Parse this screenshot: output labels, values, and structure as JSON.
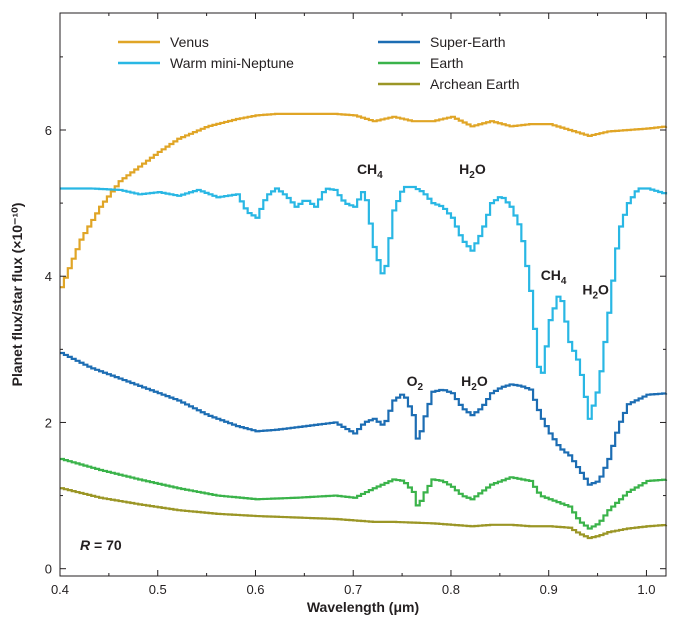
{
  "chart_data": {
    "type": "line",
    "step": true,
    "xlabel": "Wavelength (μm)",
    "ylabel": "Planet flux/star flux (×10⁻¹⁰)",
    "xlim": [
      0.4,
      1.02
    ],
    "ylim": [
      -0.1,
      7.6
    ],
    "xticks": [
      0.4,
      0.5,
      0.6,
      0.7,
      0.8,
      0.9,
      1.0
    ],
    "xtick_labels": [
      "0.4",
      "0.5",
      "0.6",
      "0.7",
      "0.8",
      "0.9",
      "1.0"
    ],
    "yticks": [
      0,
      2,
      4,
      6
    ],
    "ytick_labels": [
      "0",
      "2",
      "4",
      "6"
    ],
    "grid": false,
    "legend_position": "top",
    "resolution_label": {
      "symbol": "R",
      "text": " = 70"
    },
    "annotations": [
      {
        "base": "CH",
        "sub": "4",
        "x": 0.717,
        "y": 5.4
      },
      {
        "base": "H",
        "sub": "2",
        "tail": "O",
        "x": 0.822,
        "y": 5.4
      },
      {
        "base": "CH",
        "sub": "4",
        "x": 0.905,
        "y": 3.95
      },
      {
        "base": "H",
        "sub": "2",
        "tail": "O",
        "x": 0.948,
        "y": 3.75
      },
      {
        "base": "O",
        "sub": "2",
        "x": 0.763,
        "y": 2.5
      },
      {
        "base": "H",
        "sub": "2",
        "tail": "O",
        "x": 0.824,
        "y": 2.5
      }
    ],
    "series": [
      {
        "name": "Venus",
        "color": "#e0a526",
        "x": [
          0.4,
          0.42,
          0.44,
          0.46,
          0.48,
          0.5,
          0.52,
          0.55,
          0.58,
          0.6,
          0.62,
          0.65,
          0.68,
          0.7,
          0.72,
          0.74,
          0.76,
          0.78,
          0.8,
          0.82,
          0.84,
          0.86,
          0.88,
          0.9,
          0.92,
          0.94,
          0.96,
          0.98,
          1.0,
          1.02
        ],
        "values": [
          3.85,
          4.5,
          4.95,
          5.3,
          5.5,
          5.7,
          5.88,
          6.05,
          6.15,
          6.2,
          6.22,
          6.22,
          6.22,
          6.2,
          6.12,
          6.18,
          6.12,
          6.12,
          6.18,
          6.05,
          6.12,
          6.05,
          6.08,
          6.08,
          6.0,
          5.92,
          5.98,
          6.0,
          6.02,
          6.05
        ]
      },
      {
        "name": "Warm mini-Neptune",
        "color": "#29b7e4",
        "x": [
          0.4,
          0.43,
          0.46,
          0.48,
          0.5,
          0.52,
          0.54,
          0.56,
          0.58,
          0.59,
          0.6,
          0.61,
          0.62,
          0.63,
          0.64,
          0.65,
          0.66,
          0.67,
          0.68,
          0.69,
          0.7,
          0.71,
          0.72,
          0.73,
          0.74,
          0.75,
          0.76,
          0.77,
          0.78,
          0.79,
          0.8,
          0.81,
          0.82,
          0.83,
          0.84,
          0.85,
          0.86,
          0.87,
          0.88,
          0.89,
          0.9,
          0.91,
          0.92,
          0.93,
          0.94,
          0.95,
          0.96,
          0.97,
          0.98,
          0.99,
          1.0,
          1.02
        ],
        "values": [
          5.2,
          5.2,
          5.18,
          5.12,
          5.15,
          5.1,
          5.18,
          5.08,
          5.12,
          4.88,
          4.8,
          5.1,
          5.2,
          5.1,
          4.95,
          5.05,
          4.95,
          5.2,
          5.18,
          5.0,
          4.95,
          5.2,
          4.4,
          3.95,
          4.9,
          5.22,
          5.22,
          5.15,
          5.0,
          4.95,
          4.8,
          4.5,
          4.35,
          4.6,
          5.0,
          5.1,
          4.95,
          4.65,
          3.8,
          2.5,
          3.4,
          3.8,
          3.1,
          2.8,
          2.05,
          2.5,
          3.5,
          4.6,
          5.0,
          5.2,
          5.2,
          5.12
        ]
      },
      {
        "name": "Super-Earth",
        "color": "#1c6db3",
        "x": [
          0.4,
          0.43,
          0.46,
          0.49,
          0.52,
          0.55,
          0.58,
          0.6,
          0.62,
          0.65,
          0.68,
          0.7,
          0.71,
          0.72,
          0.73,
          0.74,
          0.75,
          0.76,
          0.765,
          0.77,
          0.78,
          0.79,
          0.8,
          0.81,
          0.82,
          0.83,
          0.84,
          0.85,
          0.86,
          0.87,
          0.88,
          0.89,
          0.9,
          0.91,
          0.92,
          0.93,
          0.94,
          0.95,
          0.96,
          0.97,
          0.98,
          1.0,
          1.02
        ],
        "values": [
          2.95,
          2.75,
          2.6,
          2.45,
          2.3,
          2.1,
          1.95,
          1.88,
          1.9,
          1.95,
          2.0,
          1.85,
          2.0,
          2.05,
          1.95,
          2.3,
          2.4,
          2.1,
          1.7,
          2.0,
          2.42,
          2.45,
          2.4,
          2.2,
          2.1,
          2.2,
          2.4,
          2.48,
          2.52,
          2.5,
          2.45,
          2.1,
          1.85,
          1.65,
          1.55,
          1.35,
          1.15,
          1.2,
          1.5,
          1.95,
          2.25,
          2.38,
          2.4
        ]
      },
      {
        "name": "Earth",
        "color": "#3ab34a",
        "x": [
          0.4,
          0.44,
          0.48,
          0.52,
          0.56,
          0.6,
          0.64,
          0.68,
          0.7,
          0.72,
          0.74,
          0.75,
          0.76,
          0.765,
          0.77,
          0.78,
          0.79,
          0.8,
          0.81,
          0.82,
          0.84,
          0.86,
          0.88,
          0.89,
          0.9,
          0.92,
          0.93,
          0.94,
          0.95,
          0.96,
          0.98,
          1.0,
          1.02
        ],
        "values": [
          1.5,
          1.35,
          1.22,
          1.1,
          1.0,
          0.95,
          0.97,
          1.0,
          0.97,
          1.1,
          1.22,
          1.2,
          1.05,
          0.82,
          1.0,
          1.22,
          1.2,
          1.12,
          1.0,
          0.95,
          1.15,
          1.25,
          1.2,
          1.0,
          0.95,
          0.85,
          0.65,
          0.55,
          0.62,
          0.8,
          1.05,
          1.2,
          1.22
        ]
      },
      {
        "name": "Archean Earth",
        "color": "#9b9626",
        "x": [
          0.4,
          0.44,
          0.48,
          0.52,
          0.56,
          0.6,
          0.64,
          0.68,
          0.7,
          0.72,
          0.74,
          0.76,
          0.78,
          0.8,
          0.82,
          0.84,
          0.86,
          0.88,
          0.9,
          0.92,
          0.93,
          0.94,
          0.95,
          0.96,
          0.98,
          1.0,
          1.02
        ],
        "values": [
          1.1,
          0.97,
          0.88,
          0.8,
          0.75,
          0.72,
          0.7,
          0.68,
          0.66,
          0.64,
          0.64,
          0.63,
          0.62,
          0.6,
          0.58,
          0.6,
          0.6,
          0.58,
          0.58,
          0.56,
          0.48,
          0.42,
          0.45,
          0.5,
          0.55,
          0.58,
          0.6
        ]
      }
    ]
  }
}
